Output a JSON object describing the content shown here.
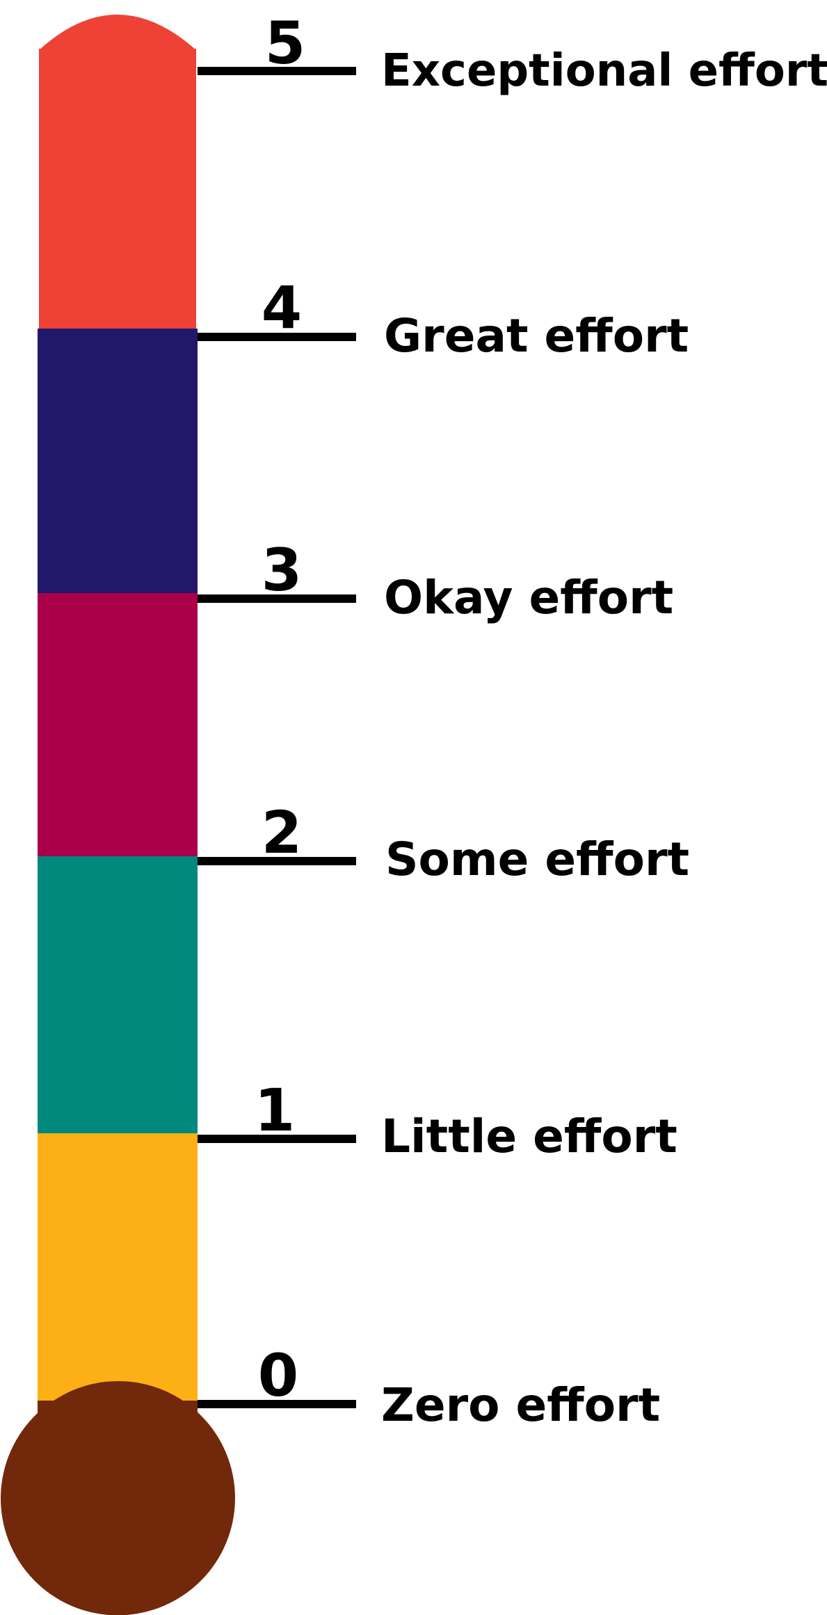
{
  "scale": {
    "levels": [
      {
        "number": "5",
        "label": "Exceptional effort",
        "segment_color": "#EE4236"
      },
      {
        "number": "4",
        "label": "Great effort",
        "segment_color": "#21186A"
      },
      {
        "number": "3",
        "label": "Okay effort",
        "segment_color": "#AA0049"
      },
      {
        "number": "2",
        "label": "Some effort",
        "segment_color": "#00897C"
      },
      {
        "number": "1",
        "label": "Little effort",
        "segment_color": "#FCB016"
      },
      {
        "number": "0",
        "label": "Zero effort",
        "segment_color": "#72280A"
      }
    ],
    "tick_color": "#000000"
  }
}
